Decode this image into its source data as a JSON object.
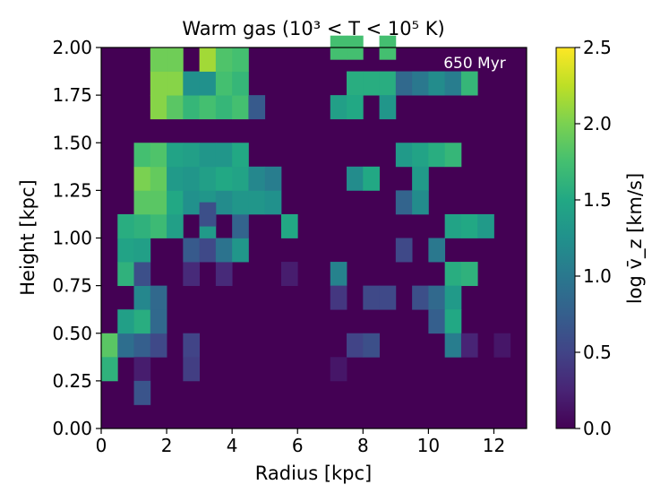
{
  "chart_data": {
    "type": "heatmap",
    "title": "Warm gas (10³ < T < 10⁵ K)",
    "annotation": "650 Myr",
    "xlabel": "Radius [kpc]",
    "ylabel": "Height [kpc]",
    "xlim": [
      0,
      13
    ],
    "ylim": [
      0,
      2
    ],
    "xticks": [
      "0",
      "2",
      "4",
      "6",
      "8",
      "10",
      "12"
    ],
    "yticks": [
      "0.00",
      "0.25",
      "0.50",
      "0.75",
      "1.00",
      "1.25",
      "1.50",
      "1.75",
      "2.00"
    ],
    "colorbar": {
      "label": "log v̄_z [km/s]",
      "range": [
        0,
        2.5
      ],
      "ticks": [
        "0.0",
        "0.5",
        "1.0",
        "1.5",
        "2.0",
        "2.5"
      ],
      "colormap": "viridis"
    },
    "grid": {
      "x_bin_kpc": 0.5,
      "y_bin_kpc": 0.125,
      "background_value": 0
    },
    "cells": [
      {
        "x": 0.0,
        "y": 0.375,
        "v": 1.85
      },
      {
        "x": 0.5,
        "y": 0.375,
        "v": 0.9
      },
      {
        "x": 1.0,
        "y": 0.375,
        "v": 0.75
      },
      {
        "x": 1.5,
        "y": 0.375,
        "v": 0.55
      },
      {
        "x": 2.5,
        "y": 0.375,
        "v": 0.5
      },
      {
        "x": 0.0,
        "y": 0.25,
        "v": 1.6
      },
      {
        "x": 1.0,
        "y": 0.25,
        "v": 0.2
      },
      {
        "x": 2.5,
        "y": 0.25,
        "v": 0.45
      },
      {
        "x": 1.0,
        "y": 0.125,
        "v": 0.65
      },
      {
        "x": 0.5,
        "y": 0.5,
        "v": 1.4
      },
      {
        "x": 1.0,
        "y": 0.5,
        "v": 1.55
      },
      {
        "x": 1.5,
        "y": 0.5,
        "v": 0.85
      },
      {
        "x": 1.0,
        "y": 0.625,
        "v": 1.15
      },
      {
        "x": 1.5,
        "y": 0.625,
        "v": 0.85
      },
      {
        "x": 0.5,
        "y": 0.75,
        "v": 1.6
      },
      {
        "x": 1.0,
        "y": 0.75,
        "v": 0.6
      },
      {
        "x": 2.5,
        "y": 0.75,
        "v": 0.3
      },
      {
        "x": 3.5,
        "y": 0.75,
        "v": 0.3
      },
      {
        "x": 5.5,
        "y": 0.75,
        "v": 0.2
      },
      {
        "x": 0.5,
        "y": 0.875,
        "v": 1.45
      },
      {
        "x": 1.0,
        "y": 0.875,
        "v": 1.4
      },
      {
        "x": 2.5,
        "y": 0.875,
        "v": 0.7
      },
      {
        "x": 3.0,
        "y": 0.875,
        "v": 0.55
      },
      {
        "x": 3.5,
        "y": 0.875,
        "v": 0.95
      },
      {
        "x": 4.0,
        "y": 0.875,
        "v": 1.3
      },
      {
        "x": 0.5,
        "y": 1.0,
        "v": 1.55
      },
      {
        "x": 1.0,
        "y": 1.0,
        "v": 1.6
      },
      {
        "x": 1.5,
        "y": 1.0,
        "v": 1.7
      },
      {
        "x": 2.0,
        "y": 1.0,
        "v": 1.4
      },
      {
        "x": 3.0,
        "y": 1.0,
        "v": 1.35
      },
      {
        "x": 4.0,
        "y": 1.0,
        "v": 0.8
      },
      {
        "x": 5.5,
        "y": 1.0,
        "v": 1.5
      },
      {
        "x": 1.0,
        "y": 1.125,
        "v": 1.85
      },
      {
        "x": 1.5,
        "y": 1.125,
        "v": 1.85
      },
      {
        "x": 2.0,
        "y": 1.125,
        "v": 1.5
      },
      {
        "x": 2.5,
        "y": 1.125,
        "v": 1.25
      },
      {
        "x": 3.0,
        "y": 1.125,
        "v": 1.3
      },
      {
        "x": 3.5,
        "y": 1.125,
        "v": 1.2
      },
      {
        "x": 4.0,
        "y": 1.125,
        "v": 1.3
      },
      {
        "x": 4.5,
        "y": 1.125,
        "v": 1.3
      },
      {
        "x": 5.0,
        "y": 1.125,
        "v": 1.25
      },
      {
        "x": 3.0,
        "y": 1.0625,
        "v": 0.6
      },
      {
        "x": 1.0,
        "y": 1.25,
        "v": 2.0
      },
      {
        "x": 1.5,
        "y": 1.25,
        "v": 1.9
      },
      {
        "x": 2.0,
        "y": 1.25,
        "v": 1.35
      },
      {
        "x": 2.5,
        "y": 1.25,
        "v": 1.3
      },
      {
        "x": 3.0,
        "y": 1.25,
        "v": 1.4
      },
      {
        "x": 3.5,
        "y": 1.25,
        "v": 1.5
      },
      {
        "x": 4.0,
        "y": 1.25,
        "v": 1.45
      },
      {
        "x": 4.5,
        "y": 1.25,
        "v": 1.15
      },
      {
        "x": 5.0,
        "y": 1.25,
        "v": 1.05
      },
      {
        "x": 1.0,
        "y": 1.375,
        "v": 1.75
      },
      {
        "x": 1.5,
        "y": 1.375,
        "v": 1.8
      },
      {
        "x": 2.0,
        "y": 1.375,
        "v": 1.45
      },
      {
        "x": 2.5,
        "y": 1.375,
        "v": 1.4
      },
      {
        "x": 3.0,
        "y": 1.375,
        "v": 1.3
      },
      {
        "x": 3.5,
        "y": 1.375,
        "v": 1.3
      },
      {
        "x": 4.0,
        "y": 1.375,
        "v": 1.5
      },
      {
        "x": 1.5,
        "y": 1.625,
        "v": 2.05
      },
      {
        "x": 2.0,
        "y": 1.625,
        "v": 1.85
      },
      {
        "x": 2.5,
        "y": 1.625,
        "v": 1.65
      },
      {
        "x": 3.0,
        "y": 1.625,
        "v": 1.75
      },
      {
        "x": 3.5,
        "y": 1.625,
        "v": 1.65
      },
      {
        "x": 4.0,
        "y": 1.625,
        "v": 1.75
      },
      {
        "x": 4.5,
        "y": 1.625,
        "v": 0.7
      },
      {
        "x": 1.5,
        "y": 1.75,
        "v": 2.05
      },
      {
        "x": 2.0,
        "y": 1.75,
        "v": 2.05
      },
      {
        "x": 2.5,
        "y": 1.75,
        "v": 1.25
      },
      {
        "x": 3.0,
        "y": 1.75,
        "v": 1.25
      },
      {
        "x": 3.5,
        "y": 1.75,
        "v": 1.75
      },
      {
        "x": 4.0,
        "y": 1.75,
        "v": 1.65
      },
      {
        "x": 1.5,
        "y": 1.875,
        "v": 1.95
      },
      {
        "x": 2.0,
        "y": 1.875,
        "v": 1.95
      },
      {
        "x": 3.0,
        "y": 1.875,
        "v": 2.15
      },
      {
        "x": 3.5,
        "y": 1.875,
        "v": 1.8
      },
      {
        "x": 4.0,
        "y": 1.875,
        "v": 1.75
      },
      {
        "x": 7.0,
        "y": 1.9375,
        "v": 1.75
      },
      {
        "x": 7.5,
        "y": 1.9375,
        "v": 1.75
      },
      {
        "x": 8.5,
        "y": 1.9375,
        "v": 1.75
      },
      {
        "x": 7.5,
        "y": 1.75,
        "v": 1.55
      },
      {
        "x": 8.0,
        "y": 1.75,
        "v": 1.55
      },
      {
        "x": 8.5,
        "y": 1.75,
        "v": 1.55
      },
      {
        "x": 9.0,
        "y": 1.75,
        "v": 0.85
      },
      {
        "x": 9.5,
        "y": 1.75,
        "v": 1.0
      },
      {
        "x": 10.0,
        "y": 1.75,
        "v": 1.2
      },
      {
        "x": 10.5,
        "y": 1.75,
        "v": 1.05
      },
      {
        "x": 11.0,
        "y": 1.75,
        "v": 1.65
      },
      {
        "x": 7.0,
        "y": 1.625,
        "v": 1.4
      },
      {
        "x": 7.5,
        "y": 1.625,
        "v": 1.5
      },
      {
        "x": 8.5,
        "y": 1.625,
        "v": 1.3
      },
      {
        "x": 9.0,
        "y": 1.375,
        "v": 1.35
      },
      {
        "x": 9.5,
        "y": 1.375,
        "v": 1.45
      },
      {
        "x": 10.0,
        "y": 1.375,
        "v": 1.55
      },
      {
        "x": 10.5,
        "y": 1.375,
        "v": 1.65
      },
      {
        "x": 7.5,
        "y": 1.25,
        "v": 1.2
      },
      {
        "x": 8.0,
        "y": 1.25,
        "v": 1.5
      },
      {
        "x": 9.5,
        "y": 1.25,
        "v": 1.35
      },
      {
        "x": 9.0,
        "y": 1.125,
        "v": 0.8
      },
      {
        "x": 9.5,
        "y": 1.125,
        "v": 1.2
      },
      {
        "x": 10.5,
        "y": 1.0,
        "v": 1.45
      },
      {
        "x": 11.0,
        "y": 1.0,
        "v": 1.5
      },
      {
        "x": 11.5,
        "y": 1.0,
        "v": 1.35
      },
      {
        "x": 9.0,
        "y": 0.875,
        "v": 0.55
      },
      {
        "x": 10.0,
        "y": 0.875,
        "v": 1.0
      },
      {
        "x": 10.5,
        "y": 0.75,
        "v": 1.55
      },
      {
        "x": 11.0,
        "y": 0.75,
        "v": 1.6
      },
      {
        "x": 8.0,
        "y": 0.625,
        "v": 0.55
      },
      {
        "x": 8.5,
        "y": 0.625,
        "v": 0.55
      },
      {
        "x": 9.5,
        "y": 0.625,
        "v": 0.6
      },
      {
        "x": 10.0,
        "y": 0.625,
        "v": 0.85
      },
      {
        "x": 10.5,
        "y": 0.625,
        "v": 1.35
      },
      {
        "x": 7.0,
        "y": 0.75,
        "v": 1.1
      },
      {
        "x": 7.0,
        "y": 0.625,
        "v": 0.4
      },
      {
        "x": 10.0,
        "y": 0.5,
        "v": 0.75
      },
      {
        "x": 10.5,
        "y": 0.5,
        "v": 1.5
      },
      {
        "x": 7.5,
        "y": 0.375,
        "v": 0.5
      },
      {
        "x": 8.0,
        "y": 0.375,
        "v": 0.6
      },
      {
        "x": 10.5,
        "y": 0.375,
        "v": 1.05
      },
      {
        "x": 11.0,
        "y": 0.375,
        "v": 0.25
      },
      {
        "x": 12.0,
        "y": 0.375,
        "v": 0.15
      },
      {
        "x": 7.0,
        "y": 0.25,
        "v": 0.15
      }
    ]
  }
}
